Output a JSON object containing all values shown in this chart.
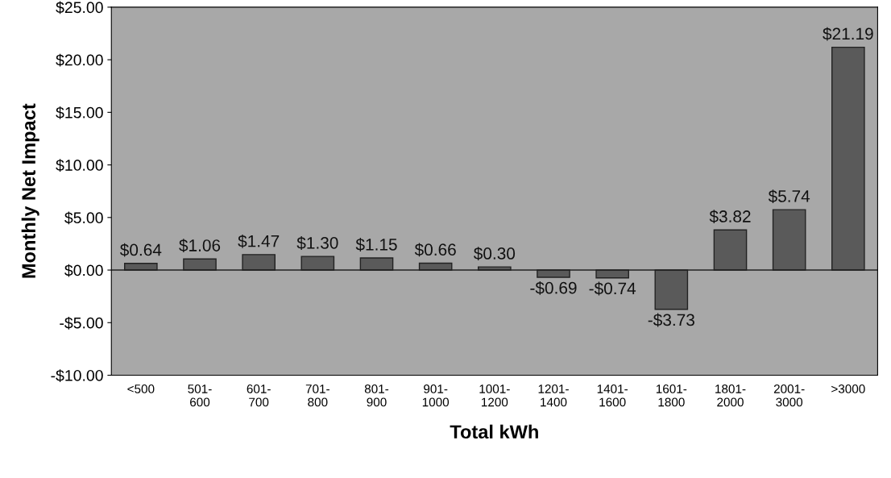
{
  "chart_data": {
    "type": "bar",
    "xlabel": "Total kWh",
    "ylabel": "Monthly Net Impact",
    "categories": [
      "<500",
      "501-\n600",
      "601-\n700",
      "701-\n800",
      "801-\n900",
      "901-\n1000",
      "1001-\n1200",
      "1201-\n1400",
      "1401-\n1600",
      "1601-\n1800",
      "1801-\n2000",
      "2001-\n3000",
      ">3000"
    ],
    "values": [
      0.64,
      1.06,
      1.47,
      1.3,
      1.15,
      0.66,
      0.3,
      -0.69,
      -0.74,
      -3.73,
      3.82,
      5.74,
      21.19
    ],
    "value_labels": [
      "$0.64",
      "$1.06",
      "$1.47",
      "$1.30",
      "$1.15",
      "$0.66",
      "$0.30",
      "-$0.69",
      "-$0.74",
      "-$3.73",
      "$3.82",
      "$5.74",
      "$21.19"
    ],
    "color": "#5a5a5a",
    "ylim": [
      -10,
      25
    ],
    "yticks": [
      {
        "value": -10,
        "label": "-$10.00"
      },
      {
        "value": -5,
        "label": "-$5.00"
      },
      {
        "value": 0,
        "label": "$0.00"
      },
      {
        "value": 5,
        "label": "$5.00"
      },
      {
        "value": 10,
        "label": "$10.00"
      },
      {
        "value": 15,
        "label": "$15.00"
      },
      {
        "value": 20,
        "label": "$20.00"
      },
      {
        "value": 25,
        "label": "$25.00"
      }
    ],
    "ref_lines": [
      {
        "axis": "y",
        "value": 0,
        "color": "#222222"
      }
    ],
    "legend": false
  }
}
